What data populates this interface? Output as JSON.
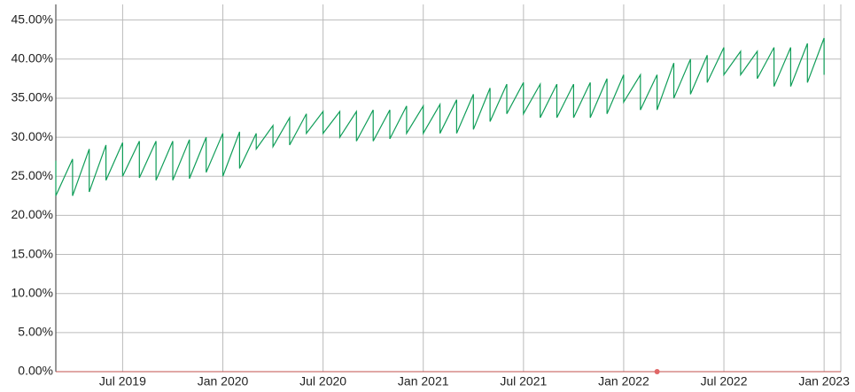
{
  "chart_data": {
    "type": "line",
    "x": [
      "2019-03",
      "2019-03",
      "2019-04",
      "2019-04",
      "2019-05",
      "2019-05",
      "2019-06",
      "2019-06",
      "2019-07",
      "2019-07",
      "2019-08",
      "2019-08",
      "2019-09",
      "2019-09",
      "2019-10",
      "2019-10",
      "2019-11",
      "2019-11",
      "2019-12",
      "2019-12",
      "2020-01",
      "2020-01",
      "2020-02",
      "2020-02",
      "2020-03",
      "2020-03",
      "2020-04",
      "2020-04",
      "2020-05",
      "2020-05",
      "2020-06",
      "2020-06",
      "2020-07",
      "2020-07",
      "2020-08",
      "2020-08",
      "2020-09",
      "2020-09",
      "2020-10",
      "2020-10",
      "2020-11",
      "2020-11",
      "2020-12",
      "2020-12",
      "2021-01",
      "2021-01",
      "2021-02",
      "2021-02",
      "2021-03",
      "2021-03",
      "2021-04",
      "2021-04",
      "2021-05",
      "2021-05",
      "2021-06",
      "2021-06",
      "2021-07",
      "2021-07",
      "2021-08",
      "2021-08",
      "2021-09",
      "2021-09",
      "2021-10",
      "2021-10",
      "2021-11",
      "2021-11",
      "2021-12",
      "2021-12",
      "2022-01",
      "2022-01",
      "2022-02",
      "2022-02",
      "2022-03",
      "2022-03",
      "2022-04",
      "2022-04",
      "2022-05",
      "2022-05",
      "2022-06",
      "2022-06",
      "2022-07",
      "2022-07",
      "2022-08",
      "2022-08",
      "2022-09",
      "2022-09",
      "2022-10",
      "2022-10",
      "2022-11",
      "2022-11",
      "2022-12",
      "2022-12",
      "2023-01",
      "2023-01"
    ],
    "series": [
      {
        "color": "#0f9d58",
        "values": [
          27,
          22.5,
          27.2,
          22.5,
          28.5,
          23,
          29,
          24.5,
          29.3,
          25,
          29.5,
          24.8,
          29.5,
          24.5,
          29.5,
          24.5,
          29.7,
          24.7,
          30,
          25.5,
          30.5,
          25,
          30.7,
          26,
          30.5,
          28.5,
          31.5,
          28.8,
          32.5,
          29,
          33,
          30.5,
          33.3,
          30.5,
          33.3,
          30,
          33.3,
          29.5,
          33.5,
          29.5,
          33.5,
          29.8,
          34,
          30.5,
          34,
          30.5,
          34.2,
          30.5,
          34.8,
          30.5,
          35.5,
          31,
          36.3,
          32,
          36.8,
          33,
          37,
          33,
          36.8,
          32.5,
          36.8,
          32.5,
          36.8,
          32.5,
          37,
          32.5,
          37.5,
          33,
          38,
          34.5,
          38,
          33.5,
          38,
          33.5,
          39.5,
          35,
          40,
          35.5,
          40.5,
          37,
          41.5,
          38,
          41,
          38,
          41,
          37.5,
          41.5,
          36.5,
          41.5,
          36.5,
          42,
          37,
          42.7,
          38
        ]
      }
    ],
    "points": [
      {
        "x": "2022-03",
        "value": 0,
        "color": "#e06666"
      }
    ],
    "xlim": [
      "2019-03",
      "2023-02"
    ],
    "xticks": [
      {
        "value": "2019-07",
        "label": "Jul 2019"
      },
      {
        "value": "2020-01",
        "label": "Jan 2020"
      },
      {
        "value": "2020-07",
        "label": "Jul 2020"
      },
      {
        "value": "2021-01",
        "label": "Jan 2021"
      },
      {
        "value": "2021-07",
        "label": "Jul 2021"
      },
      {
        "value": "2022-01",
        "label": "Jan 2022"
      },
      {
        "value": "2022-07",
        "label": "Jul 2022"
      },
      {
        "value": "2023-01",
        "label": "Jan 2023"
      }
    ],
    "ylim": [
      0,
      47
    ],
    "yticks": [
      {
        "value": 0,
        "label": "0.00%"
      },
      {
        "value": 5,
        "label": "5.00%"
      },
      {
        "value": 10,
        "label": "10.00%"
      },
      {
        "value": 15,
        "label": "15.00%"
      },
      {
        "value": 20,
        "label": "20.00%"
      },
      {
        "value": 25,
        "label": "25.00%"
      },
      {
        "value": 30,
        "label": "30.00%"
      },
      {
        "value": 35,
        "label": "35.00%"
      },
      {
        "value": 40,
        "label": "40.00%"
      },
      {
        "value": 45,
        "label": "45.00%"
      }
    ],
    "grid": true
  }
}
